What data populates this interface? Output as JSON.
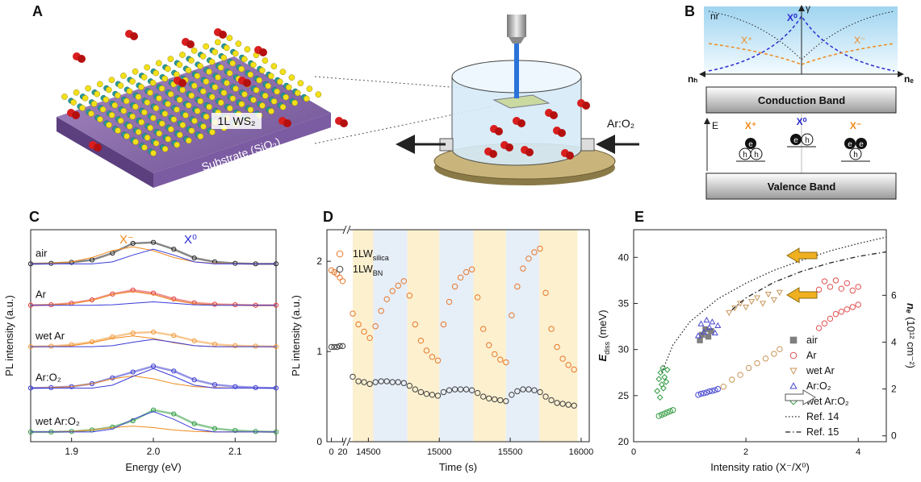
{
  "panel_labels": [
    "A",
    "B",
    "C",
    "D",
    "E"
  ],
  "panel_a": {
    "layer_label": "1L WS₂",
    "substrate_label": "Substrate (SiO₂)",
    "gas_label": "Ar:O₂"
  },
  "panel_b": {
    "nr_label": "nr",
    "exciton_top": "X⁰",
    "gamma_label": "γ",
    "trion_plus_top": "X⁺",
    "trion_minus_top": "X⁻",
    "hole_density": "nₕ",
    "electron_density": "nₑ",
    "conduction_band": "Conduction Band",
    "energy_axis": "E",
    "trion_plus": "X⁺",
    "exciton": "X⁰",
    "trion_minus": "X⁻",
    "valence_band": "Valence Band",
    "electron": "e",
    "hole": "h"
  },
  "chart_data": [
    {
      "type": "line",
      "xlabel": "Energy (eV)",
      "ylabel": "PL intensity (a.u.)",
      "annotations": [
        {
          "text": "X⁻",
          "color": "#f08a1c"
        },
        {
          "text": "X⁰",
          "color": "#2a2ad0"
        }
      ],
      "x": [
        1.85,
        1.875,
        1.9,
        1.925,
        1.95,
        1.975,
        2.0,
        2.025,
        2.05,
        2.075,
        2.1,
        2.125,
        2.15
      ],
      "xlim": [
        1.85,
        2.15
      ],
      "xticks": [
        1.9,
        {
          "value": 2,
          "label": "2.0"
        },
        2.1
      ],
      "ylim": [
        0.55,
        4.9
      ],
      "fit_colors": {
        "trion": "#f08a1c",
        "exciton": "#3a3ad8"
      },
      "series": [
        {
          "name": "air",
          "color": "#222222",
          "values": [
            4.2,
            4.21,
            4.23,
            4.28,
            4.42,
            4.62,
            4.64,
            4.5,
            4.32,
            4.24,
            4.21,
            4.2,
            4.2
          ],
          "trion": [
            4.2,
            4.21,
            4.24,
            4.33,
            4.47,
            4.55,
            4.47,
            4.33,
            4.24,
            4.21,
            4.2,
            4.2,
            4.2
          ],
          "exciton": [
            4.2,
            4.2,
            4.2,
            4.2,
            4.24,
            4.38,
            4.5,
            4.38,
            4.24,
            4.2,
            4.2,
            4.2,
            4.2
          ]
        },
        {
          "name": "Ar",
          "color": "#e03a3a",
          "values": [
            3.35,
            3.36,
            3.39,
            3.46,
            3.58,
            3.66,
            3.6,
            3.48,
            3.4,
            3.37,
            3.36,
            3.35,
            3.35
          ],
          "trion": [
            3.35,
            3.36,
            3.38,
            3.45,
            3.57,
            3.63,
            3.57,
            3.45,
            3.38,
            3.36,
            3.35,
            3.35,
            3.35
          ],
          "exciton": [
            3.35,
            3.35,
            3.35,
            3.35,
            3.36,
            3.39,
            3.42,
            3.39,
            3.36,
            3.35,
            3.35,
            3.35,
            3.35
          ]
        },
        {
          "name": "wet Ar",
          "color": "#f39a3a",
          "values": [
            2.5,
            2.51,
            2.54,
            2.6,
            2.7,
            2.78,
            2.8,
            2.73,
            2.62,
            2.55,
            2.52,
            2.51,
            2.5
          ],
          "trion": [
            2.5,
            2.5,
            2.52,
            2.58,
            2.67,
            2.72,
            2.67,
            2.58,
            2.52,
            2.5,
            2.5,
            2.5,
            2.5
          ],
          "exciton": [
            2.5,
            2.5,
            2.5,
            2.5,
            2.52,
            2.59,
            2.65,
            2.59,
            2.52,
            2.5,
            2.5,
            2.5,
            2.5
          ]
        },
        {
          "name": "Ar:O₂",
          "color": "#3a3ad0",
          "values": [
            1.65,
            1.66,
            1.68,
            1.74,
            1.86,
            1.98,
            2.1,
            2.0,
            1.82,
            1.72,
            1.68,
            1.66,
            1.65
          ],
          "trion": [
            1.65,
            1.66,
            1.68,
            1.74,
            1.84,
            1.9,
            1.84,
            1.74,
            1.68,
            1.66,
            1.65,
            1.65,
            1.65
          ],
          "exciton": [
            1.65,
            1.65,
            1.65,
            1.65,
            1.71,
            1.89,
            2.05,
            1.89,
            1.71,
            1.65,
            1.65,
            1.65,
            1.65
          ]
        },
        {
          "name": "wet Ar:O₂",
          "color": "#2e9a3e",
          "values": [
            0.75,
            0.75,
            0.76,
            0.79,
            0.85,
            0.98,
            1.2,
            1.12,
            0.92,
            0.82,
            0.78,
            0.76,
            0.75
          ],
          "trion": [
            0.75,
            0.75,
            0.76,
            0.79,
            0.84,
            0.87,
            0.84,
            0.79,
            0.76,
            0.75,
            0.75,
            0.75,
            0.75
          ],
          "exciton": [
            0.75,
            0.75,
            0.75,
            0.75,
            0.81,
            1.01,
            1.17,
            1.01,
            0.81,
            0.75,
            0.75,
            0.75,
            0.75
          ]
        }
      ]
    },
    {
      "type": "scatter",
      "xlabel": "Time (s)",
      "ylabel": "PL intensity (a.u.)",
      "xlim": [
        [
          -8,
          28
        ],
        [
          14350,
          16057
        ]
      ],
      "xticks": [
        0,
        20,
        14500,
        15000,
        15500,
        16000
      ],
      "ylim": [
        0,
        2.35
      ],
      "yticks": [
        0,
        1,
        2
      ],
      "legend": "upper left",
      "bands": [
        {
          "start": 14390,
          "end": 14535,
          "color": "#fcf0cf"
        },
        {
          "start": 14535,
          "end": 14775,
          "color": "#e6eef8"
        },
        {
          "start": 14775,
          "end": 15000,
          "color": "#fcf0cf"
        },
        {
          "start": 15000,
          "end": 15240,
          "color": "#e6eef8"
        },
        {
          "start": 15240,
          "end": 15470,
          "color": "#fcf0cf"
        },
        {
          "start": 15470,
          "end": 15705,
          "color": "#e6eef8"
        },
        {
          "start": 15705,
          "end": 15975,
          "color": "#fcf0cf"
        }
      ],
      "x": [
        0,
        5,
        10,
        15,
        20,
        14390,
        14430,
        14470,
        14510,
        14550,
        14590,
        14630,
        14670,
        14710,
        14750,
        14790,
        14830,
        14870,
        14910,
        14950,
        14990,
        15030,
        15070,
        15110,
        15150,
        15190,
        15230,
        15270,
        15310,
        15350,
        15390,
        15430,
        15470,
        15510,
        15550,
        15590,
        15630,
        15670,
        15710,
        15750,
        15790,
        15830,
        15870,
        15910,
        15950
      ],
      "series": [
        {
          "name": "1LW",
          "subscript": "silica",
          "color": "#e8782a",
          "values": [
            1.9,
            1.88,
            1.86,
            1.82,
            1.78,
            1.42,
            1.3,
            1.22,
            1.15,
            1.28,
            1.45,
            1.58,
            1.67,
            1.73,
            1.78,
            1.62,
            1.3,
            1.12,
            1.01,
            0.94,
            0.9,
            1.3,
            1.55,
            1.72,
            1.82,
            1.88,
            1.91,
            1.6,
            1.25,
            1.07,
            0.97,
            0.91,
            0.88,
            1.4,
            1.72,
            1.92,
            2.03,
            2.1,
            2.14,
            1.65,
            1.25,
            1.05,
            0.92,
            0.85,
            0.8
          ]
        },
        {
          "name": "1LW",
          "subscript": "BN",
          "color": "#404040",
          "values": [
            1.05,
            1.05,
            1.05,
            1.06,
            1.06,
            0.72,
            0.67,
            0.66,
            0.64,
            0.66,
            0.67,
            0.67,
            0.66,
            0.66,
            0.65,
            0.62,
            0.58,
            0.55,
            0.53,
            0.52,
            0.51,
            0.55,
            0.57,
            0.58,
            0.58,
            0.58,
            0.57,
            0.54,
            0.5,
            0.48,
            0.47,
            0.46,
            0.45,
            0.52,
            0.56,
            0.58,
            0.58,
            0.57,
            0.55,
            0.5,
            0.46,
            0.43,
            0.42,
            0.41,
            0.4
          ]
        }
      ]
    },
    {
      "type": "scatter",
      "xlabel": "Intensity ratio (X⁻/X⁰)",
      "ylabel": {
        "main": "E",
        "sub": "diss",
        "unit": "(meV)"
      },
      "y2label": {
        "main": "nₑ",
        "unit": "(10¹² cm⁻²)"
      },
      "xlim": [
        0,
        4.5
      ],
      "xticks": [
        0,
        2,
        4
      ],
      "ylim": [
        20,
        43
      ],
      "yticks": [
        20,
        25,
        30,
        35,
        40
      ],
      "y2lim": [
        -0.25,
        8.8
      ],
      "y2ticks": [
        0,
        2,
        4,
        6
      ],
      "legend": "lower right",
      "series": [
        {
          "name": "air",
          "color": "#7f7f7f",
          "marker": "square",
          "filled": true,
          "x": [
            1.18,
            1.22,
            1.28,
            1.33,
            1.38
          ],
          "values": [
            31.0,
            31.6,
            32.2,
            31.4,
            32.0
          ]
        },
        {
          "name": "Ar",
          "color": "#e05050",
          "marker": "circle",
          "x": [
            3.3,
            3.4,
            3.5,
            3.6,
            3.7,
            3.8,
            3.9,
            4.0
          ],
          "values": [
            36.5,
            37.4,
            36.8,
            37.5,
            36.6,
            37.2,
            36.4,
            36.8
          ],
          "y2_points": {
            "x": [
              3.3,
              3.4,
              3.5,
              3.6,
              3.7,
              3.8,
              3.9,
              4.0
            ],
            "values": [
              4.6,
              4.8,
              5.0,
              5.2,
              5.3,
              5.4,
              5.5,
              5.6
            ]
          }
        },
        {
          "name": "wet Ar",
          "color": "#c8965a",
          "marker": "triangle-down",
          "x": [
            1.7,
            1.8,
            1.9,
            2.0,
            2.1,
            2.2,
            2.3,
            2.4,
            2.5,
            2.6
          ],
          "values": [
            34.0,
            34.5,
            35.0,
            34.6,
            35.2,
            35.6,
            35.0,
            36.0,
            35.4,
            36.2
          ],
          "y2_points": {
            "x": [
              1.6,
              1.75,
              1.9,
              2.05,
              2.2,
              2.35,
              2.5,
              2.6
            ],
            "values": [
              2.1,
              2.4,
              2.6,
              2.9,
              3.1,
              3.3,
              3.5,
              3.7
            ]
          }
        },
        {
          "name": "Ar:O₂",
          "color": "#4a4ad0",
          "marker": "triangle-up",
          "x": [
            1.15,
            1.2,
            1.25,
            1.3,
            1.35,
            1.4,
            1.45,
            1.5
          ],
          "values": [
            31.5,
            32.8,
            31.9,
            33.2,
            32.4,
            33.0,
            31.8,
            32.6
          ],
          "y2_points": {
            "x": [
              1.15,
              1.2,
              1.25,
              1.3,
              1.35,
              1.4,
              1.45,
              1.5
            ],
            "values": [
              1.75,
              1.8,
              1.82,
              1.85,
              1.9,
              1.92,
              1.95,
              2.0
            ]
          }
        },
        {
          "name": "wet Ar:O₂",
          "color": "#2e9a3e",
          "marker": "diamond",
          "x": [
            0.42,
            0.45,
            0.48,
            0.5,
            0.52,
            0.55,
            0.58,
            0.6,
            0.47,
            0.53
          ],
          "values": [
            25.5,
            26.8,
            27.5,
            26.2,
            28.0,
            27.0,
            26.5,
            27.8,
            24.8,
            25.8
          ],
          "y2_points": {
            "x": [
              0.45,
              0.5,
              0.55,
              0.6,
              0.65,
              0.7
            ],
            "values": [
              0.85,
              0.9,
              0.95,
              1.0,
              1.05,
              1.1
            ]
          }
        },
        {
          "name": "Ref. 14",
          "color": "#222222",
          "dash": "dotted",
          "x": [
            0.5,
            0.7,
            1.0,
            1.5,
            2,
            2.5,
            3,
            3.5,
            4,
            4.5
          ],
          "values": [
            27.5,
            30.5,
            33,
            35.5,
            37.2,
            38.6,
            39.7,
            40.7,
            41.5,
            42.2
          ]
        },
        {
          "name": "Ref. 15",
          "color": "#222222",
          "dash": "dashdot",
          "x": [
            1.75,
            2,
            2.5,
            3,
            3.5,
            4,
            4.5
          ],
          "values": [
            34.3,
            35.6,
            37.3,
            38.5,
            39.4,
            40.1,
            40.6
          ]
        }
      ]
    }
  ]
}
